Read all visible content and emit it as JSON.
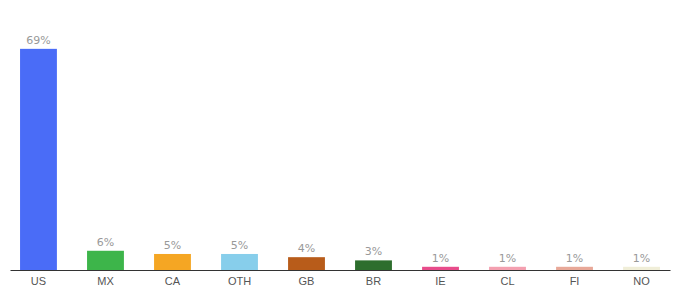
{
  "chart_data": {
    "type": "bar",
    "categories": [
      "US",
      "MX",
      "CA",
      "OTH",
      "GB",
      "BR",
      "IE",
      "CL",
      "FI",
      "NO"
    ],
    "values": [
      69,
      6,
      5,
      5,
      4,
      3,
      1,
      1,
      1,
      1
    ],
    "value_labels": [
      "69%",
      "6%",
      "5%",
      "5%",
      "4%",
      "3%",
      "1%",
      "1%",
      "1%",
      "1%"
    ],
    "colors": [
      "#4a6cf7",
      "#3db54a",
      "#f5a623",
      "#87ceeb",
      "#b85c1a",
      "#2d6e2d",
      "#e84c8b",
      "#f4a0b0",
      "#e8a898",
      "#f0eed8"
    ],
    "ylim": [
      0,
      78
    ],
    "data_labels": true,
    "tick_labels": "x"
  }
}
